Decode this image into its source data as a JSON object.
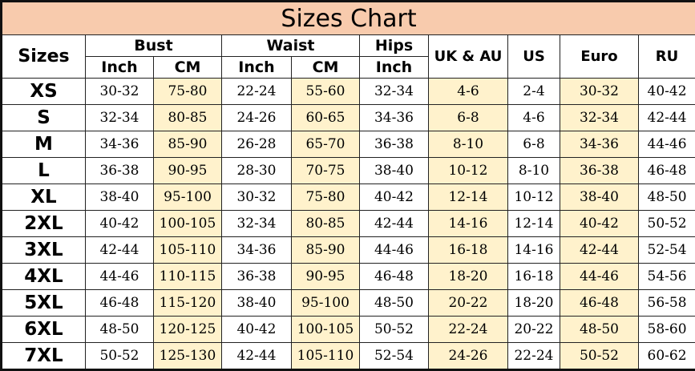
{
  "title": "Sizes Chart",
  "headers": {
    "sizes": "Sizes",
    "bust": "Bust",
    "waist": "Waist",
    "hips": "Hips",
    "uk_au": "UK & AU",
    "us": "US",
    "euro": "Euro",
    "ru": "RU",
    "inch": "Inch",
    "cm": "CM"
  },
  "colors": {
    "title_bg": "#f8cbad",
    "highlight": "#fff2cc"
  },
  "rows": [
    [
      "XS",
      "30-32",
      "75-80",
      "22-24",
      "55-60",
      "32-34",
      "4-6",
      "2-4",
      "30-32",
      "40-42"
    ],
    [
      "S",
      "32-34",
      "80-85",
      "24-26",
      "60-65",
      "34-36",
      "6-8",
      "4-6",
      "32-34",
      "42-44"
    ],
    [
      "M",
      "34-36",
      "85-90",
      "26-28",
      "65-70",
      "36-38",
      "8-10",
      "6-8",
      "34-36",
      "44-46"
    ],
    [
      "L",
      "36-38",
      "90-95",
      "28-30",
      "70-75",
      "38-40",
      "10-12",
      "8-10",
      "36-38",
      "46-48"
    ],
    [
      "XL",
      "38-40",
      "95-100",
      "30-32",
      "75-80",
      "40-42",
      "12-14",
      "10-12",
      "38-40",
      "48-50"
    ],
    [
      "2XL",
      "40-42",
      "100-105",
      "32-34",
      "80-85",
      "42-44",
      "14-16",
      "12-14",
      "40-42",
      "50-52"
    ],
    [
      "3XL",
      "42-44",
      "105-110",
      "34-36",
      "85-90",
      "44-46",
      "16-18",
      "14-16",
      "42-44",
      "52-54"
    ],
    [
      "4XL",
      "44-46",
      "110-115",
      "36-38",
      "90-95",
      "46-48",
      "18-20",
      "16-18",
      "44-46",
      "54-56"
    ],
    [
      "5XL",
      "46-48",
      "115-120",
      "38-40",
      "95-100",
      "48-50",
      "20-22",
      "18-20",
      "46-48",
      "56-58"
    ],
    [
      "6XL",
      "48-50",
      "120-125",
      "40-42",
      "100-105",
      "50-52",
      "22-24",
      "20-22",
      "48-50",
      "58-60"
    ],
    [
      "7XL",
      "50-52",
      "125-130",
      "42-44",
      "105-110",
      "52-54",
      "24-26",
      "22-24",
      "50-52",
      "60-62"
    ]
  ]
}
